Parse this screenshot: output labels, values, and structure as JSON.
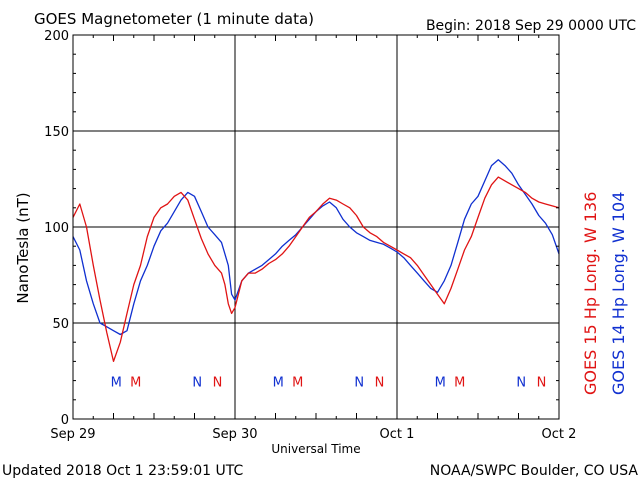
{
  "header": {
    "title": "GOES Magnetometer (1 minute data)",
    "begin": "Begin:  2018 Sep 29 0000 UTC"
  },
  "footer": {
    "updated": "Updated 2018 Oct  1 23:59:01 UTC",
    "credit": "NOAA/SWPC Boulder, CO USA"
  },
  "colors": {
    "goes15": "#e01414",
    "goes14": "#1030d0",
    "grid": "#000000"
  },
  "chart_data": {
    "type": "line",
    "title": "GOES Magnetometer (1 minute data)",
    "xlabel": "Universal Time",
    "ylabel": "NanoTesla (nT)",
    "xlim": [
      0,
      72
    ],
    "ylim": [
      0,
      200
    ],
    "yticks": [
      0,
      50,
      100,
      150,
      200
    ],
    "xticks": [
      {
        "value": 0,
        "label": "Sep 29"
      },
      {
        "value": 24,
        "label": "Sep 30"
      },
      {
        "value": 48,
        "label": "Oct 1"
      },
      {
        "value": 72,
        "label": "Oct 2"
      }
    ],
    "grid": true,
    "legend_placement": "right-vertical",
    "series": [
      {
        "name": "GOES 15 Hp  Long. W 136",
        "color": "#e01414",
        "points": [
          [
            0,
            105
          ],
          [
            1,
            112
          ],
          [
            2,
            100
          ],
          [
            3,
            80
          ],
          [
            4,
            62
          ],
          [
            5,
            45
          ],
          [
            6,
            30
          ],
          [
            7,
            40
          ],
          [
            8,
            55
          ],
          [
            9,
            70
          ],
          [
            10,
            80
          ],
          [
            11,
            95
          ],
          [
            12,
            105
          ],
          [
            13,
            110
          ],
          [
            14,
            112
          ],
          [
            15,
            116
          ],
          [
            16,
            118
          ],
          [
            17,
            114
          ],
          [
            18,
            104
          ],
          [
            19,
            94
          ],
          [
            20,
            86
          ],
          [
            21,
            80
          ],
          [
            22,
            76
          ],
          [
            22.5,
            70
          ],
          [
            23,
            60
          ],
          [
            23.5,
            55
          ],
          [
            24,
            58
          ],
          [
            25,
            72
          ],
          [
            26,
            76
          ],
          [
            27,
            76
          ],
          [
            28,
            78
          ],
          [
            29,
            81
          ],
          [
            30,
            83
          ],
          [
            31,
            86
          ],
          [
            32,
            90
          ],
          [
            33,
            95
          ],
          [
            34,
            100
          ],
          [
            35,
            105
          ],
          [
            36,
            108
          ],
          [
            37,
            112
          ],
          [
            38,
            115
          ],
          [
            39,
            114
          ],
          [
            40,
            112
          ],
          [
            41,
            110
          ],
          [
            42,
            106
          ],
          [
            43,
            100
          ],
          [
            44,
            97
          ],
          [
            45,
            95
          ],
          [
            46,
            92
          ],
          [
            47,
            90
          ],
          [
            48,
            88
          ],
          [
            49,
            86
          ],
          [
            50,
            84
          ],
          [
            51,
            80
          ],
          [
            52,
            75
          ],
          [
            53,
            70
          ],
          [
            54,
            65
          ],
          [
            55,
            60
          ],
          [
            56,
            68
          ],
          [
            57,
            78
          ],
          [
            58,
            88
          ],
          [
            59,
            95
          ],
          [
            60,
            105
          ],
          [
            61,
            115
          ],
          [
            62,
            122
          ],
          [
            63,
            126
          ],
          [
            64,
            124
          ],
          [
            65,
            122
          ],
          [
            66,
            120
          ],
          [
            67,
            118
          ],
          [
            68,
            115
          ],
          [
            69,
            113
          ],
          [
            70,
            112
          ],
          [
            71,
            111
          ],
          [
            72,
            110
          ]
        ]
      },
      {
        "name": "GOES 14 Hp  Long. W 104",
        "color": "#1030d0",
        "points": [
          [
            0,
            95
          ],
          [
            1,
            88
          ],
          [
            2,
            72
          ],
          [
            3,
            60
          ],
          [
            4,
            50
          ],
          [
            5,
            48
          ],
          [
            6,
            46
          ],
          [
            7,
            44
          ],
          [
            8,
            46
          ],
          [
            9,
            60
          ],
          [
            10,
            72
          ],
          [
            11,
            80
          ],
          [
            12,
            90
          ],
          [
            13,
            98
          ],
          [
            14,
            102
          ],
          [
            15,
            108
          ],
          [
            16,
            114
          ],
          [
            17,
            118
          ],
          [
            18,
            116
          ],
          [
            19,
            108
          ],
          [
            20,
            100
          ],
          [
            21,
            96
          ],
          [
            22,
            92
          ],
          [
            23,
            80
          ],
          [
            23.5,
            65
          ],
          [
            24,
            62
          ],
          [
            25,
            72
          ],
          [
            26,
            76
          ],
          [
            27,
            78
          ],
          [
            28,
            80
          ],
          [
            29,
            83
          ],
          [
            30,
            86
          ],
          [
            31,
            90
          ],
          [
            32,
            93
          ],
          [
            33,
            96
          ],
          [
            34,
            100
          ],
          [
            35,
            104
          ],
          [
            36,
            108
          ],
          [
            37,
            111
          ],
          [
            38,
            113
          ],
          [
            39,
            110
          ],
          [
            40,
            104
          ],
          [
            41,
            100
          ],
          [
            42,
            97
          ],
          [
            43,
            95
          ],
          [
            44,
            93
          ],
          [
            45,
            92
          ],
          [
            46,
            91
          ],
          [
            47,
            89
          ],
          [
            48,
            87
          ],
          [
            49,
            84
          ],
          [
            50,
            80
          ],
          [
            51,
            76
          ],
          [
            52,
            72
          ],
          [
            53,
            68
          ],
          [
            54,
            66
          ],
          [
            55,
            72
          ],
          [
            56,
            80
          ],
          [
            57,
            92
          ],
          [
            58,
            104
          ],
          [
            59,
            112
          ],
          [
            60,
            116
          ],
          [
            61,
            124
          ],
          [
            62,
            132
          ],
          [
            63,
            135
          ],
          [
            64,
            132
          ],
          [
            65,
            128
          ],
          [
            66,
            122
          ],
          [
            67,
            117
          ],
          [
            68,
            112
          ],
          [
            69,
            106
          ],
          [
            70,
            102
          ],
          [
            71,
            96
          ],
          [
            72,
            86
          ]
        ]
      }
    ],
    "markers": [
      {
        "label": "M",
        "x": 6.4,
        "series": "GOES 14 Hp  Long. W 104"
      },
      {
        "label": "M",
        "x": 9.3,
        "series": "GOES 15 Hp  Long. W 136"
      },
      {
        "label": "N",
        "x": 18.4,
        "series": "GOES 14 Hp  Long. W 104"
      },
      {
        "label": "N",
        "x": 21.4,
        "series": "GOES 15 Hp  Long. W 136"
      },
      {
        "label": "M",
        "x": 30.4,
        "series": "GOES 14 Hp  Long. W 104"
      },
      {
        "label": "M",
        "x": 33.3,
        "series": "GOES 15 Hp  Long. W 136"
      },
      {
        "label": "N",
        "x": 42.4,
        "series": "GOES 14 Hp  Long. W 104"
      },
      {
        "label": "N",
        "x": 45.4,
        "series": "GOES 15 Hp  Long. W 136"
      },
      {
        "label": "M",
        "x": 54.4,
        "series": "GOES 14 Hp  Long. W 104"
      },
      {
        "label": "M",
        "x": 57.3,
        "series": "GOES 15 Hp  Long. W 136"
      },
      {
        "label": "N",
        "x": 66.4,
        "series": "GOES 14 Hp  Long. W 104"
      },
      {
        "label": "N",
        "x": 69.4,
        "series": "GOES 15 Hp  Long. W 136"
      }
    ],
    "marker_y": 17
  }
}
